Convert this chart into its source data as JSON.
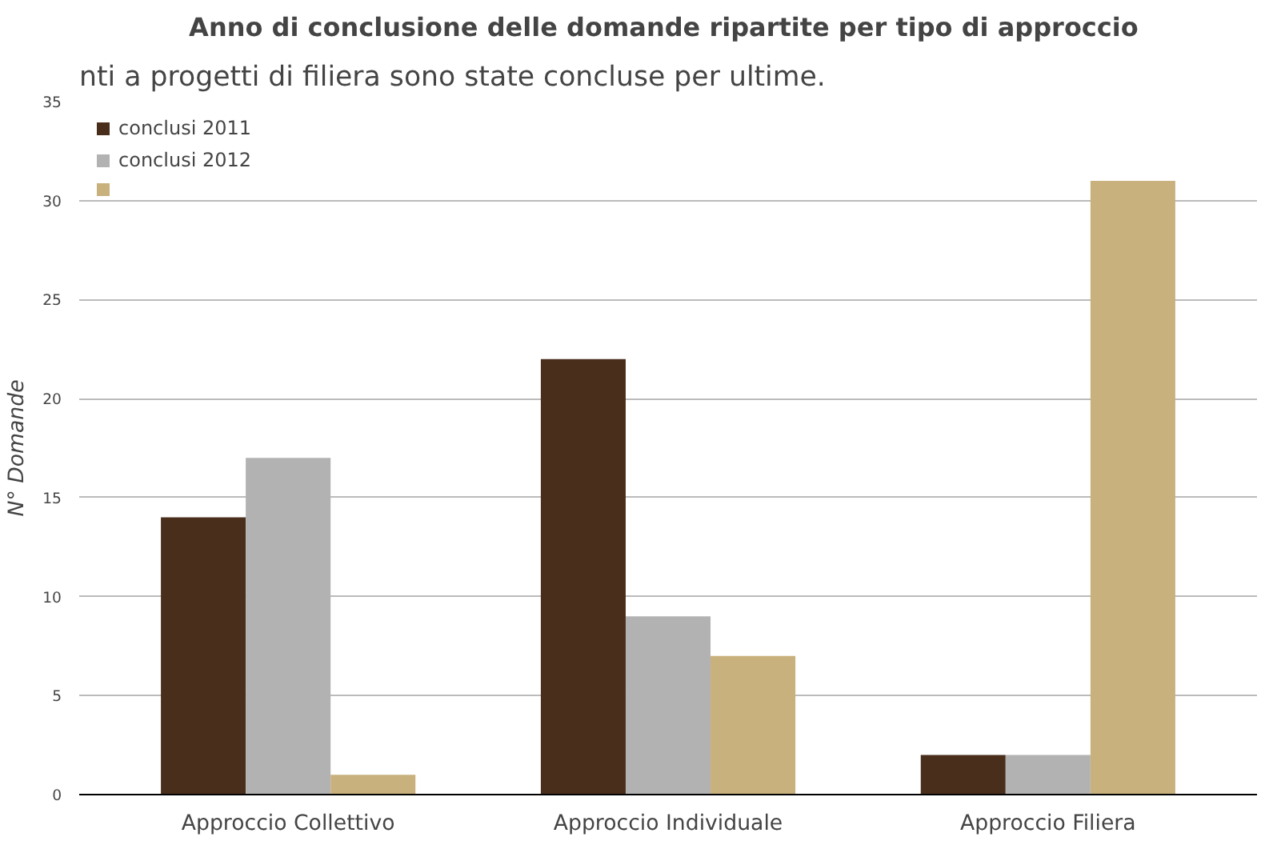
{
  "chart_data": {
    "type": "bar",
    "title": "Anno di conclusione delle domande ripartite per  tipo di approccio",
    "ylabel": "N° Domande",
    "annotations": [
      "nti a progetti di filiera sono state concluse per ultime."
    ],
    "categories": [
      "Approccio Collettivo",
      "Approccio Individuale",
      "Approccio Filiera"
    ],
    "series": [
      {
        "name": "conclusi 2011",
        "color": "#4a2e1c",
        "values": [
          14,
          22,
          2
        ]
      },
      {
        "name": "conclusi 2012",
        "color": "#b2b2b2",
        "values": [
          17,
          9,
          2
        ]
      },
      {
        "color": "#c9b17e",
        "values": [
          1,
          7,
          31
        ]
      }
    ],
    "ylim": [
      0,
      35
    ],
    "yticks": [
      0,
      5,
      10,
      15,
      20,
      25,
      30,
      35
    ],
    "grid": "y",
    "legend": "top left"
  }
}
